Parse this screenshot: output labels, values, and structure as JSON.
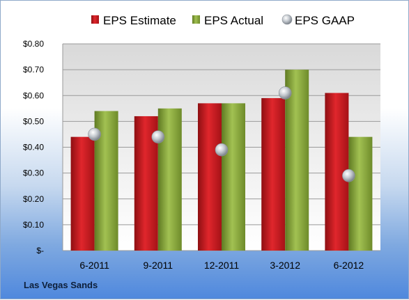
{
  "company": "Las Vegas Sands",
  "chart_data": {
    "type": "bar",
    "categories": [
      "6-2011",
      "9-2011",
      "12-2011",
      "3-2012",
      "6-2012"
    ],
    "series": [
      {
        "name": "EPS Estimate",
        "kind": "bar",
        "color": "#c0161c",
        "values": [
          0.44,
          0.52,
          0.57,
          0.59,
          0.61
        ]
      },
      {
        "name": "EPS Actual",
        "kind": "bar",
        "color": "#8aa83c",
        "values": [
          0.54,
          0.55,
          0.57,
          0.7,
          0.44
        ]
      },
      {
        "name": "EPS GAAP",
        "kind": "marker",
        "color": "#b9bec4",
        "values": [
          0.45,
          0.44,
          0.39,
          0.61,
          0.29
        ]
      }
    ],
    "ylim": [
      0,
      0.8
    ],
    "yticks": [
      {
        "value": 0.8,
        "label": "$0.80"
      },
      {
        "value": 0.7,
        "label": "$0.70"
      },
      {
        "value": 0.6,
        "label": "$0.60"
      },
      {
        "value": 0.5,
        "label": "$0.50"
      },
      {
        "value": 0.4,
        "label": "$0.40"
      },
      {
        "value": 0.3,
        "label": "$0.30"
      },
      {
        "value": 0.2,
        "label": "$0.20"
      },
      {
        "value": 0.1,
        "label": "$0.10"
      },
      {
        "value": 0.0,
        "label": "$-"
      }
    ],
    "grid": true,
    "legend_position": "top"
  }
}
